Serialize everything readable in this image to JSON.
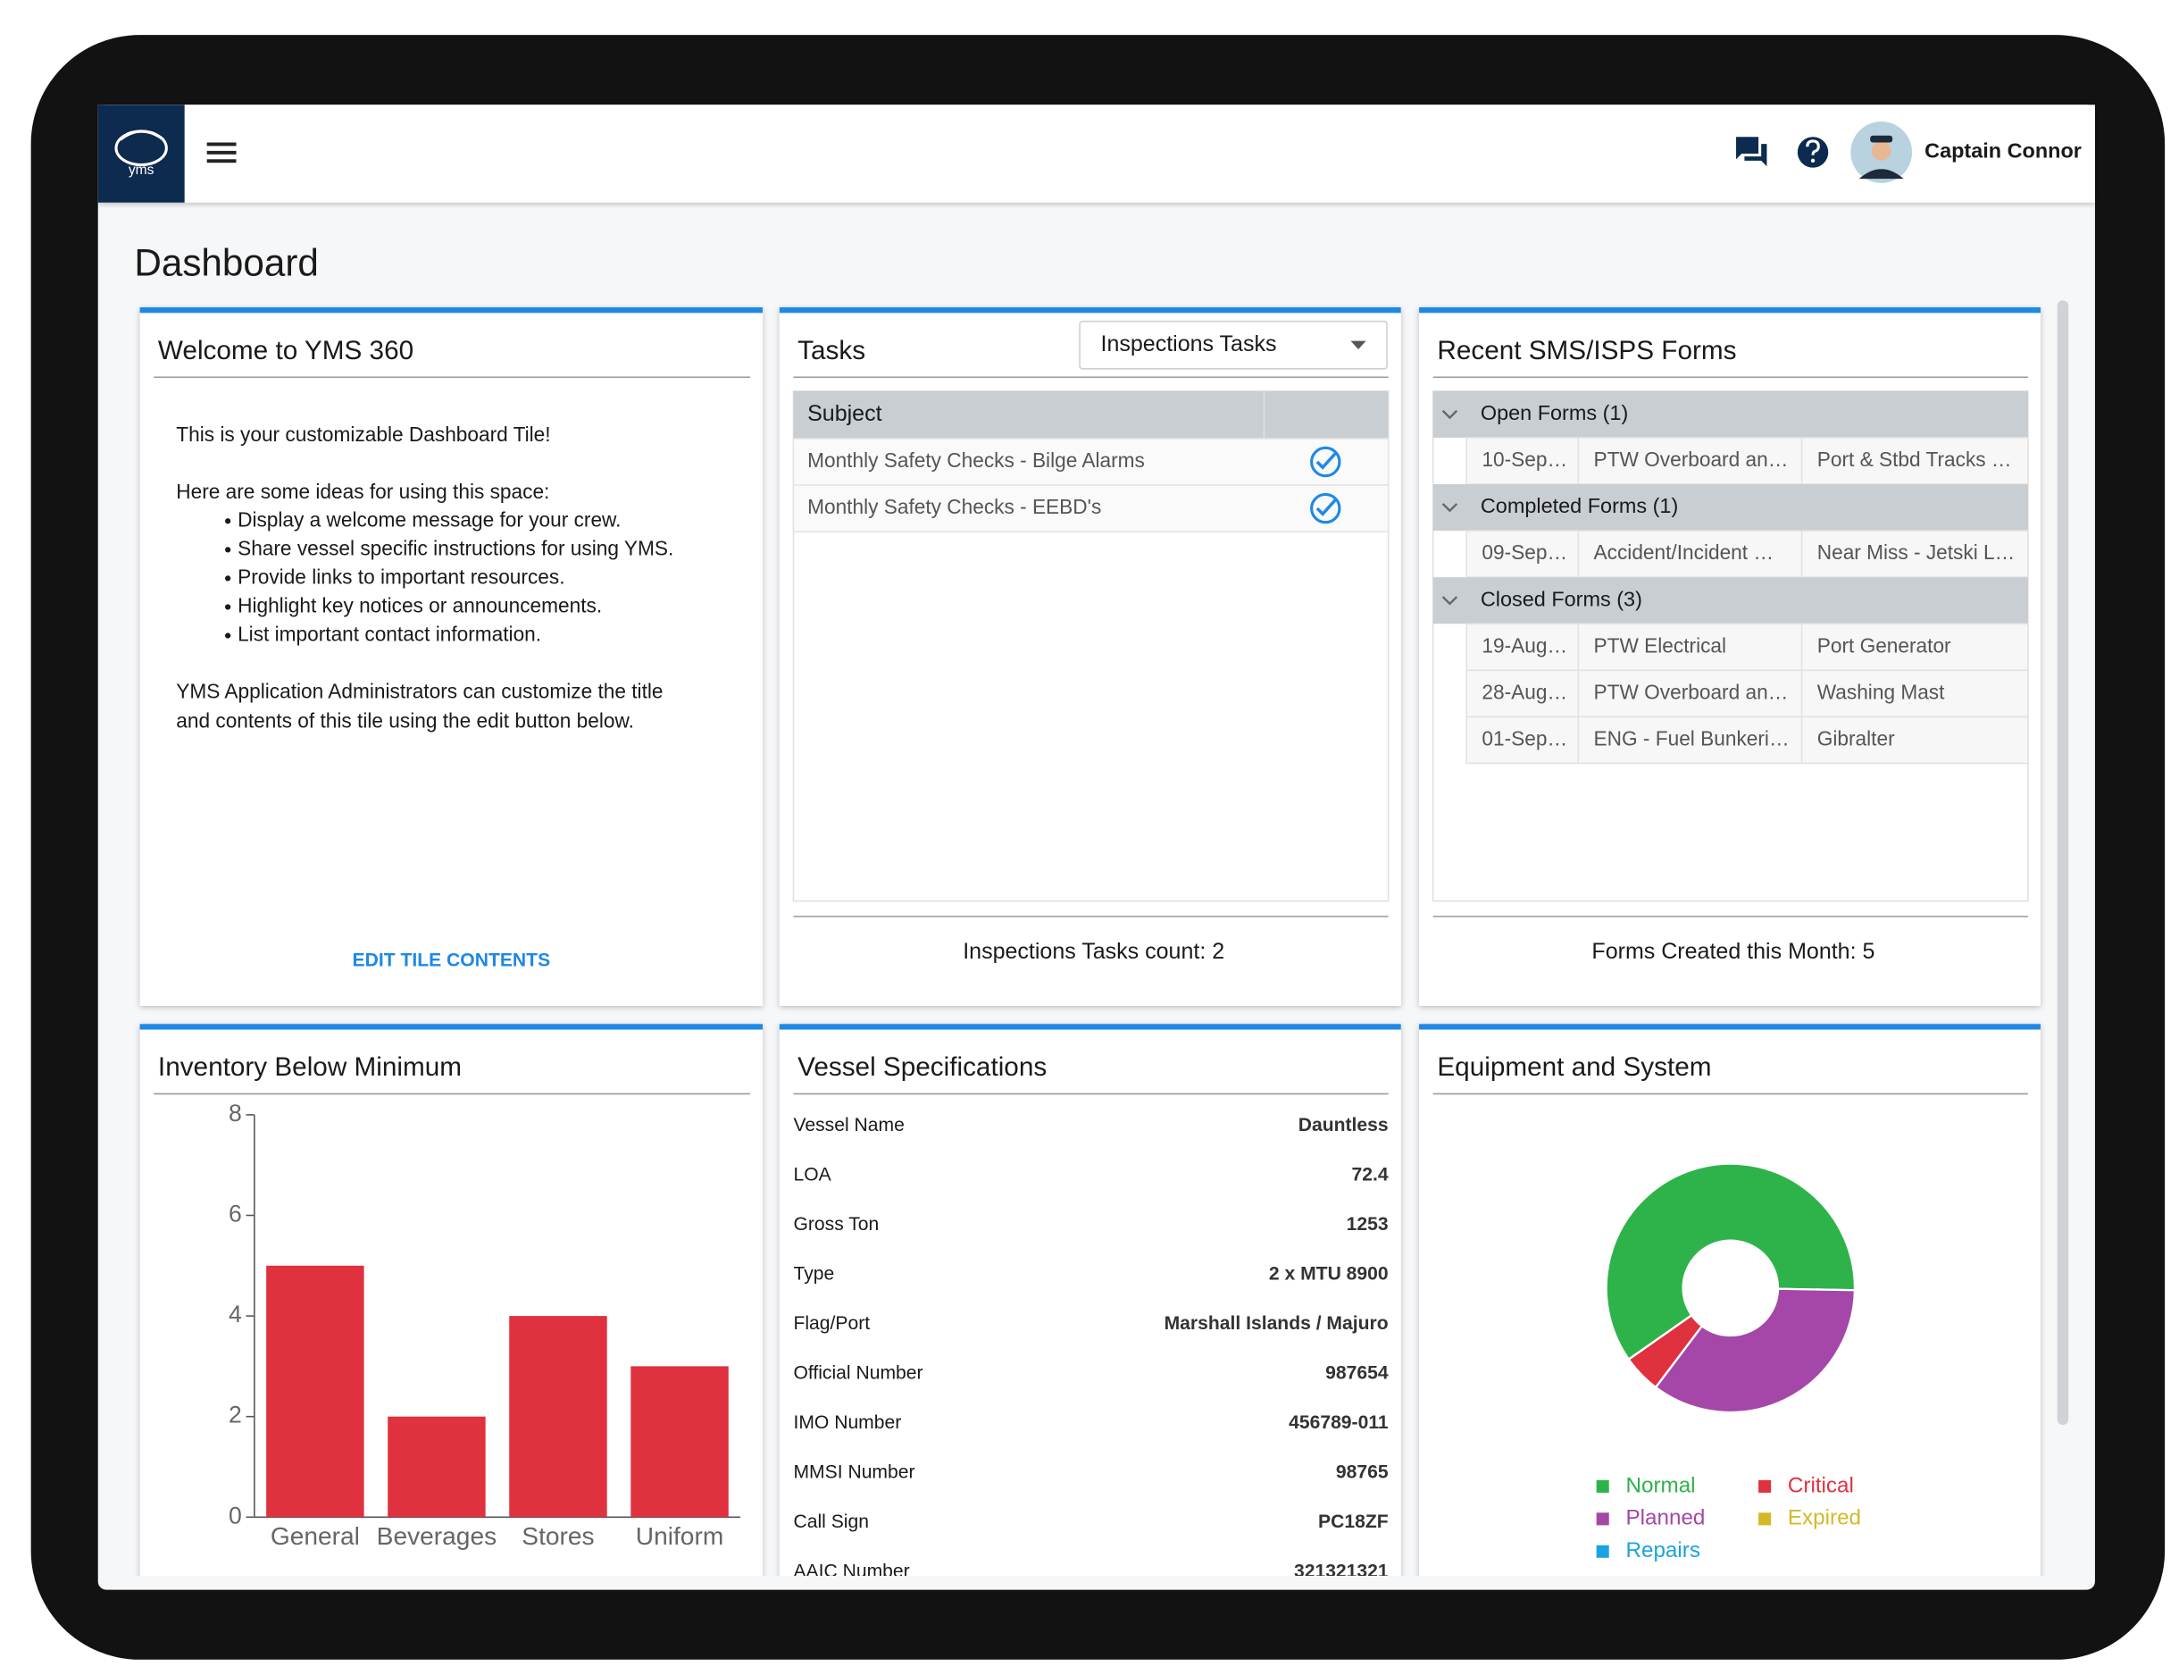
{
  "header": {
    "logo_text": "yms",
    "user_name": "Captain Connor"
  },
  "page_title": "Dashboard",
  "welcome": {
    "title": "Welcome to YMS 360",
    "intro": "This is your customizable Dashboard Tile!",
    "ideas_heading": "Here are some ideas for using this space:",
    "ideas": [
      "Display a welcome message for your crew.",
      "Share vessel specific instructions for using YMS.",
      "Provide links to important resources.",
      "Highlight key notices or announcements.",
      "List important contact information."
    ],
    "admin_note_lines": [
      "YMS Application Administrators can customize the title",
      "and contents of this tile using the edit button below."
    ],
    "edit_button": "EDIT TILE CONTENTS"
  },
  "tasks": {
    "title": "Tasks",
    "dropdown": "Inspections Tasks",
    "column": "Subject",
    "rows": [
      "Monthly Safety Checks - Bilge Alarms",
      "Monthly Safety Checks - EEBD's"
    ],
    "footer": "Inspections Tasks count: 2"
  },
  "forms": {
    "title": "Recent SMS/ISPS Forms",
    "groups": [
      {
        "name": "Open Forms (1)",
        "rows": [
          [
            "10-Sep…",
            "PTW Overboard an…",
            "Port & Stbd Tracks …"
          ]
        ]
      },
      {
        "name": "Completed Forms (1)",
        "rows": [
          [
            "09-Sep…",
            "Accident/Incident …",
            "Near Miss - Jetski L…"
          ]
        ]
      },
      {
        "name": "Closed Forms (3)",
        "rows": [
          [
            "19-Aug…",
            "PTW Electrical",
            "Port Generator"
          ],
          [
            "28-Aug…",
            "PTW Overboard an…",
            "Washing Mast"
          ],
          [
            "01-Sep…",
            "ENG - Fuel Bunkeri…",
            "Gibralter"
          ]
        ]
      }
    ],
    "footer": "Forms Created this Month: 5"
  },
  "inventory_chart": {
    "type": "bar",
    "title": "Inventory Below Minimum",
    "categories": [
      "General",
      "Beverages",
      "Stores",
      "Uniform"
    ],
    "values": [
      5,
      2,
      4,
      3
    ],
    "color": "#e0313f",
    "ylim": [
      0,
      8
    ],
    "yticks": [
      0,
      2,
      4,
      6,
      8
    ]
  },
  "vessel": {
    "title": "Vessel Specifications",
    "rows": [
      [
        "Vessel Name",
        "Dauntless"
      ],
      [
        "LOA",
        "72.4"
      ],
      [
        "Gross Ton",
        "1253"
      ],
      [
        "Type",
        "2 x MTU 8900"
      ],
      [
        "Flag/Port",
        "Marshall Islands / Majuro"
      ],
      [
        "Official Number",
        "987654"
      ],
      [
        "IMO Number",
        "456789-011"
      ],
      [
        "MMSI Number",
        "98765"
      ],
      [
        "Call Sign",
        "PC18ZF"
      ],
      [
        "AAIC Number",
        "321321321"
      ]
    ]
  },
  "equipment_chart": {
    "type": "pie",
    "title": "Equipment and System",
    "categories": [
      "Normal",
      "Planned",
      "Repairs",
      "Critical",
      "Expired"
    ],
    "values": [
      60,
      35,
      0,
      5,
      0
    ],
    "colors": [
      "#2db34a",
      "#a447a8",
      "#1aa3e0",
      "#e0313f",
      "#d4b82a"
    ]
  }
}
